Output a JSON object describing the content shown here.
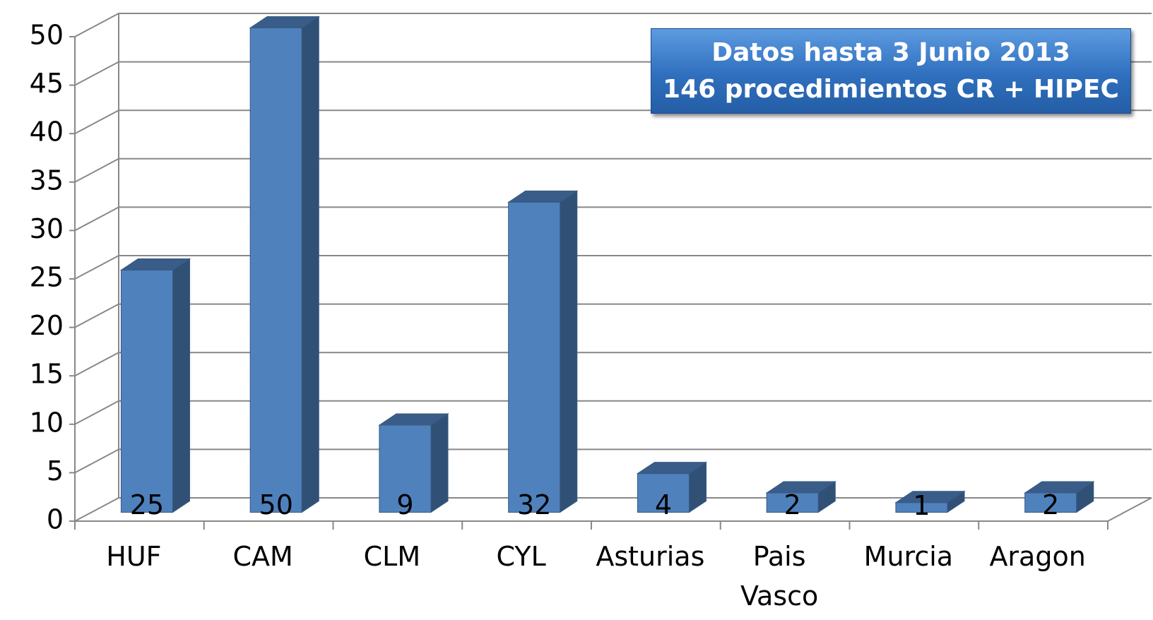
{
  "chart_data": {
    "type": "bar3d",
    "categories": [
      "HUF",
      "CAM",
      "CLM",
      "CYL",
      "Asturias",
      "Pais Vasco",
      "Murcia",
      "Aragon"
    ],
    "values": [
      25,
      50,
      9,
      32,
      4,
      2,
      1,
      2
    ],
    "color": "#4f81bd",
    "ylim": [
      0,
      50
    ],
    "yticks": [
      0,
      5,
      10,
      15,
      20,
      25,
      30,
      35,
      40,
      45,
      50
    ],
    "grid": true,
    "annotation": [
      "Datos hasta 3 Junio 2013",
      "146 procedimientos CR + HIPEC"
    ]
  }
}
